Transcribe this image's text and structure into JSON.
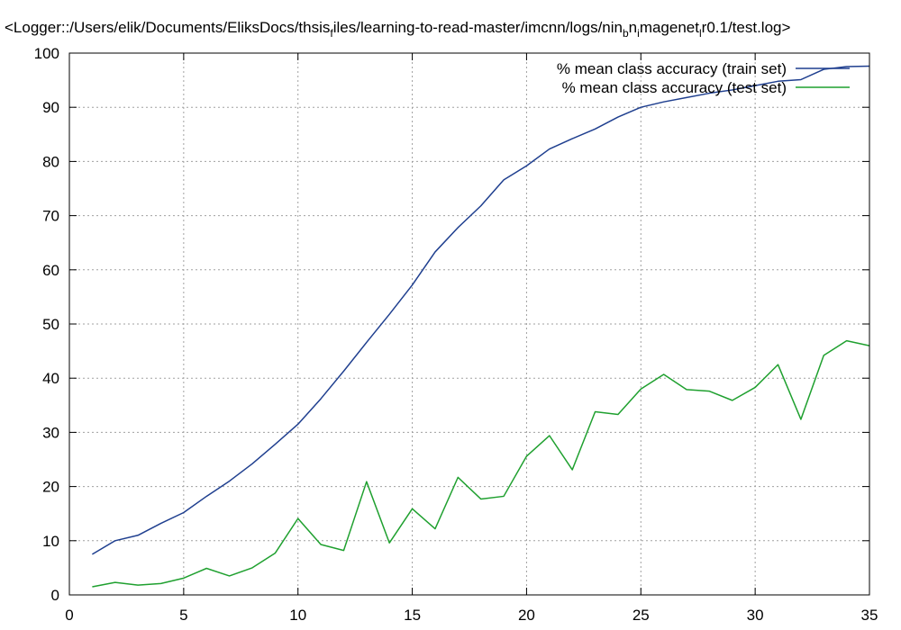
{
  "chart_data": {
    "type": "line",
    "title": {
      "prefix": "<Logger::/Users/elik/Documents/EliksDocs/thsis",
      "sub1": "f",
      "mid1": "iles/learning-to-read-master/imcnn/logs/nin",
      "sub2": "b",
      "mid2": "n",
      "sub3": "i",
      "mid3": "magenet",
      "sub4": "l",
      "suffix": "r0.1/test.log>"
    },
    "xlabel": "",
    "ylabel": "",
    "xlim": [
      0,
      35
    ],
    "ylim": [
      0,
      100
    ],
    "x_ticks": [
      0,
      5,
      10,
      15,
      20,
      25,
      30,
      35
    ],
    "y_ticks": [
      0,
      10,
      20,
      30,
      40,
      50,
      60,
      70,
      80,
      90,
      100
    ],
    "grid": true,
    "legend_position": "top-right",
    "x": [
      1,
      2,
      3,
      4,
      5,
      6,
      7,
      8,
      9,
      10,
      11,
      12,
      13,
      14,
      15,
      16,
      17,
      18,
      19,
      20,
      21,
      22,
      23,
      24,
      25,
      26,
      27,
      28,
      29,
      30,
      31,
      32,
      33,
      34,
      35
    ],
    "series": [
      {
        "name": "% mean class accuracy (train set)",
        "color": "#1f3f8f",
        "values": [
          7.5,
          10.0,
          11.0,
          13.2,
          15.2,
          18.2,
          21.0,
          24.2,
          27.8,
          31.5,
          36.2,
          41.3,
          46.6,
          51.8,
          57.2,
          63.3,
          67.8,
          71.8,
          76.6,
          79.2,
          82.3,
          84.2,
          86.0,
          88.2,
          90.0,
          91.0,
          91.8,
          92.6,
          93.2,
          94.0,
          94.8,
          95.1,
          97.0,
          97.5,
          97.6
        ]
      },
      {
        "name": "% mean class accuracy (test set)",
        "color": "#1fa02f",
        "values": [
          1.5,
          2.3,
          1.8,
          2.1,
          3.1,
          4.9,
          3.5,
          5.0,
          7.7,
          14.1,
          9.3,
          8.2,
          20.9,
          9.6,
          15.9,
          12.2,
          21.7,
          17.7,
          18.2,
          25.6,
          29.4,
          23.1,
          33.8,
          33.3,
          38.0,
          40.7,
          37.9,
          37.6,
          35.9,
          38.3,
          42.5,
          32.4,
          44.2,
          46.9,
          46.0
        ]
      }
    ]
  }
}
